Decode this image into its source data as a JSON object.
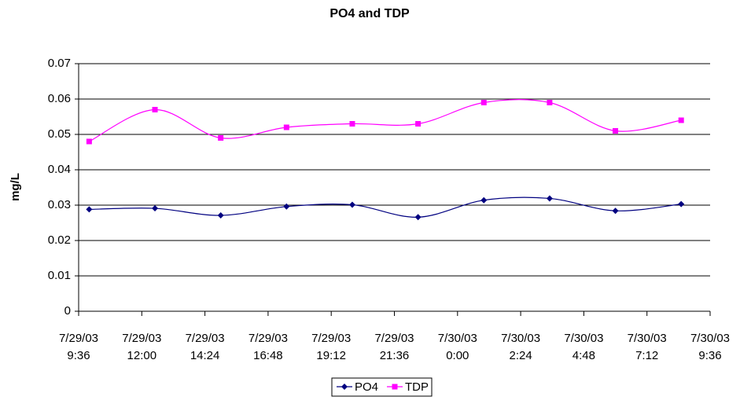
{
  "chart_data": {
    "type": "line",
    "title": "PO4 and TDP",
    "y_label": "mg/L",
    "x": [
      "7/29/03 10:00",
      "7/29/03 12:30",
      "7/29/03 15:00",
      "7/29/03 17:30",
      "7/29/03 20:00",
      "7/29/03 22:30",
      "7/30/03 1:00",
      "7/30/03 3:30",
      "7/30/03 6:00",
      "7/30/03 8:30"
    ],
    "series": [
      {
        "name": "PO4",
        "color": "#000080",
        "marker": "diamond",
        "values": [
          0.0288,
          0.0291,
          0.0271,
          0.0296,
          0.0301,
          0.0266,
          0.0314,
          0.0319,
          0.0284,
          0.0303
        ]
      },
      {
        "name": "TDP",
        "color": "#ff00ff",
        "marker": "square",
        "values": [
          0.048,
          0.057,
          0.049,
          0.052,
          0.053,
          0.053,
          0.059,
          0.059,
          0.051,
          0.054
        ]
      }
    ],
    "xlim": [
      "7/29/03 9:36",
      "7/30/03 9:36"
    ],
    "xticks": [
      "7/29/03 9:36",
      "7/29/03 12:00",
      "7/29/03 14:24",
      "7/29/03 16:48",
      "7/29/03 19:12",
      "7/29/03 21:36",
      "7/30/03 0:00",
      "7/30/03 2:24",
      "7/30/03 4:48",
      "7/30/03 7:12",
      "7/30/03 9:36"
    ],
    "ylim": [
      0,
      0.07
    ],
    "yticks": [
      0,
      0.01,
      0.02,
      0.03,
      0.04,
      0.05,
      0.06,
      0.07
    ],
    "grid": true,
    "smooth": true,
    "legend": "bottom"
  }
}
